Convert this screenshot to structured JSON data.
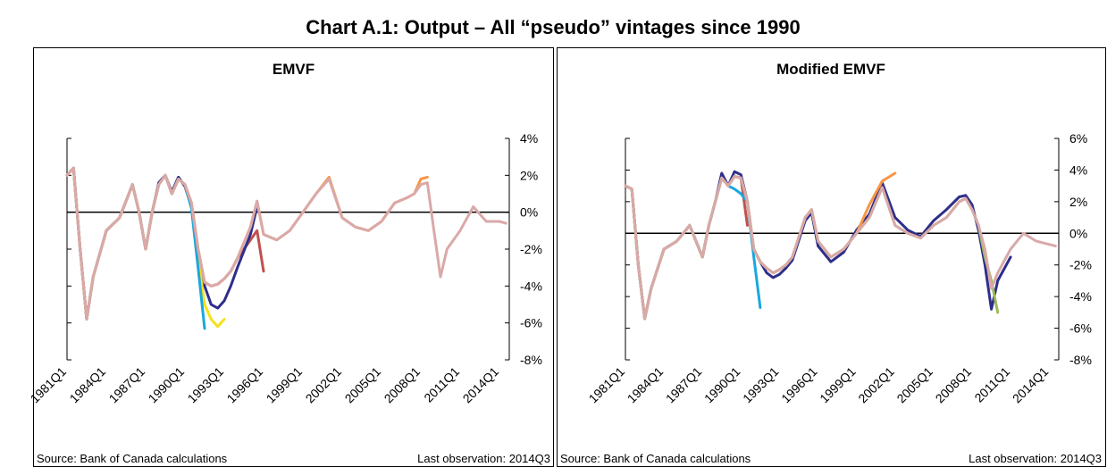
{
  "title": "Chart A.1: Output – All “pseudo” vintages since 1990",
  "chart_data": [
    {
      "type": "line",
      "title": "EMVF",
      "source": "Source: Bank of Canada calculations",
      "last_observation": "Last observation: 2014Q3",
      "zero_line": true,
      "xlim": [
        1981,
        2014.75
      ],
      "ylim": [
        -8,
        4
      ],
      "xticks": [
        {
          "value": 1981,
          "label": "1981Q1"
        },
        {
          "value": 1984,
          "label": "1984Q1"
        },
        {
          "value": 1987,
          "label": "1987Q1"
        },
        {
          "value": 1990,
          "label": "1990Q1"
        },
        {
          "value": 1993,
          "label": "1993Q1"
        },
        {
          "value": 1996,
          "label": "1996Q1"
        },
        {
          "value": 1999,
          "label": "1999Q1"
        },
        {
          "value": 2002,
          "label": "2002Q1"
        },
        {
          "value": 2005,
          "label": "2005Q1"
        },
        {
          "value": 2008,
          "label": "2008Q1"
        },
        {
          "value": 2011,
          "label": "2011Q1"
        },
        {
          "value": 2014,
          "label": "2014Q1"
        }
      ],
      "yticks": [
        {
          "value": -8,
          "label": "-8%"
        },
        {
          "value": -6,
          "label": "-6%"
        },
        {
          "value": -4,
          "label": "-4%"
        },
        {
          "value": -2,
          "label": "-2%"
        },
        {
          "value": 0,
          "label": "0%"
        },
        {
          "value": 2,
          "label": "2%"
        },
        {
          "value": 4,
          "label": "4%"
        }
      ],
      "x": [
        1981,
        1981.5,
        1982,
        1982.5,
        1983,
        1984,
        1985,
        1986,
        1986.5,
        1987,
        1987.5,
        1988,
        1988.5,
        1989,
        1989.5,
        1990,
        1990.5,
        1991,
        1991.5,
        1992,
        1992.5,
        1993,
        1993.5,
        1994,
        1995,
        1995.5,
        1996,
        1997,
        1998,
        1999,
        2000,
        2001,
        2002,
        2003,
        2004,
        2005,
        2006,
        2007,
        2007.5,
        2008,
        2008.5,
        2009,
        2009.5,
        2010,
        2011,
        2012,
        2013,
        2014,
        2014.5
      ],
      "series": [
        {
          "color": "#c0504d",
          "values": [
            2.0,
            2.4,
            -2.0,
            -5.8,
            -3.5,
            -1.0,
            -0.3,
            1.5,
            0.0,
            -2.0,
            0.0,
            1.5,
            2.0,
            1.0,
            1.8,
            1.5,
            0.5,
            -2.0,
            -3.8,
            -4.0,
            -3.9,
            -3.6,
            -3.2,
            -2.5,
            -1.5,
            -1.0,
            -3.2,
            null,
            null,
            null,
            null,
            null,
            null,
            null,
            null,
            null,
            null,
            null,
            null,
            null,
            null,
            null,
            null,
            null,
            null,
            null,
            null,
            null,
            null
          ]
        },
        {
          "color": "#2e2e8a",
          "values": [
            2.0,
            2.4,
            -2.0,
            -5.8,
            -3.5,
            -1.0,
            -0.3,
            1.5,
            0.0,
            -2.0,
            0.0,
            1.6,
            2.0,
            1.1,
            1.9,
            1.4,
            0.3,
            -2.2,
            -4.0,
            -5.0,
            -5.2,
            -4.8,
            -4.0,
            -3.0,
            -1.2,
            0.3,
            null,
            null,
            null,
            null,
            null,
            null,
            null,
            null,
            null,
            null,
            null,
            null,
            null,
            null,
            null,
            null,
            null,
            null,
            null,
            null,
            null,
            null,
            null
          ]
        },
        {
          "color": "#f5e11a",
          "values": [
            2.0,
            2.4,
            -2.0,
            -5.8,
            -3.5,
            -1.0,
            -0.3,
            1.5,
            0.0,
            -2.0,
            0.0,
            1.5,
            2.0,
            1.0,
            1.8,
            1.5,
            0.5,
            -2.5,
            -5.0,
            -5.8,
            -6.2,
            -5.8,
            null,
            null,
            null,
            null,
            null,
            null,
            null,
            null,
            null,
            null,
            null,
            null,
            null,
            null,
            null,
            null,
            null,
            null,
            null,
            null,
            null,
            null,
            null,
            null,
            null,
            null,
            null
          ]
        },
        {
          "color": "#1aa7e0",
          "values": [
            2.0,
            2.4,
            -2.0,
            -5.8,
            -3.5,
            -1.0,
            -0.3,
            1.5,
            0.0,
            -2.0,
            0.0,
            1.5,
            2.0,
            1.0,
            1.8,
            1.5,
            0.2,
            -3.0,
            -6.3,
            null,
            null,
            null,
            null,
            null,
            null,
            null,
            null,
            null,
            null,
            null,
            null,
            null,
            null,
            null,
            null,
            null,
            null,
            null,
            null,
            null,
            null,
            null,
            null,
            null,
            null,
            null,
            null,
            null,
            null
          ]
        },
        {
          "color": "#f79646",
          "values": [
            2.0,
            2.4,
            -2.0,
            -5.8,
            -3.5,
            -1.0,
            -0.3,
            1.5,
            0.0,
            -2.0,
            0.0,
            1.5,
            2.0,
            1.0,
            1.8,
            1.5,
            0.5,
            -2.0,
            -3.8,
            -4.0,
            -3.9,
            -3.6,
            -3.2,
            -2.5,
            -0.8,
            0.6,
            -1.2,
            -1.5,
            -1.0,
            0.0,
            1.0,
            1.9,
            -0.3,
            -0.8,
            -1.0,
            -0.5,
            0.5,
            0.8,
            1.0,
            1.8,
            1.9,
            null,
            null,
            null,
            null,
            null,
            null,
            null,
            null
          ]
        },
        {
          "color": "#d9a9a9",
          "values": [
            2.0,
            2.4,
            -2.0,
            -5.8,
            -3.5,
            -1.0,
            -0.3,
            1.5,
            0.0,
            -2.0,
            0.0,
            1.5,
            2.0,
            1.0,
            1.8,
            1.5,
            0.5,
            -2.0,
            -3.8,
            -4.0,
            -3.9,
            -3.6,
            -3.2,
            -2.5,
            -0.8,
            0.6,
            -1.2,
            -1.5,
            -1.0,
            0.0,
            1.0,
            1.8,
            -0.3,
            -0.8,
            -1.0,
            -0.5,
            0.5,
            0.8,
            1.0,
            1.5,
            1.6,
            -1.0,
            -3.5,
            -2.0,
            -1.0,
            0.3,
            -0.5,
            -0.5,
            -0.6
          ]
        }
      ]
    },
    {
      "type": "line",
      "title": "Modified EMVF",
      "source": "Source: Bank of Canada calculations",
      "last_observation": "Last observation: 2014Q3",
      "zero_line": true,
      "xlim": [
        1981,
        2014.75
      ],
      "ylim": [
        -8,
        6
      ],
      "xticks": [
        {
          "value": 1981,
          "label": "1981Q1"
        },
        {
          "value": 1984,
          "label": "1984Q1"
        },
        {
          "value": 1987,
          "label": "1987Q1"
        },
        {
          "value": 1990,
          "label": "1990Q1"
        },
        {
          "value": 1993,
          "label": "1993Q1"
        },
        {
          "value": 1996,
          "label": "1996Q1"
        },
        {
          "value": 1999,
          "label": "1999Q1"
        },
        {
          "value": 2002,
          "label": "2002Q1"
        },
        {
          "value": 2005,
          "label": "2005Q1"
        },
        {
          "value": 2008,
          "label": "2008Q1"
        },
        {
          "value": 2011,
          "label": "2011Q1"
        },
        {
          "value": 2014,
          "label": "2014Q1"
        }
      ],
      "yticks": [
        {
          "value": -8,
          "label": "-8%"
        },
        {
          "value": -6,
          "label": "-6%"
        },
        {
          "value": -4,
          "label": "-4%"
        },
        {
          "value": -2,
          "label": "-2%"
        },
        {
          "value": 0,
          "label": "0%"
        },
        {
          "value": 2,
          "label": "2%"
        },
        {
          "value": 4,
          "label": "4%"
        },
        {
          "value": 6,
          "label": "6%"
        }
      ],
      "x": [
        1981,
        1981.5,
        1982,
        1982.5,
        1983,
        1984,
        1985,
        1986,
        1986.5,
        1987,
        1987.5,
        1988,
        1988.5,
        1989,
        1989.5,
        1990,
        1990.5,
        1991,
        1991.5,
        1992,
        1992.5,
        1993,
        1993.5,
        1994,
        1995,
        1995.5,
        1996,
        1997,
        1998,
        1999,
        2000,
        2001,
        2002,
        2003,
        2004,
        2005,
        2006,
        2007,
        2007.5,
        2008,
        2008.5,
        2009,
        2009.5,
        2010,
        2011,
        2012,
        2013,
        2014,
        2014.5
      ],
      "series": [
        {
          "color": "#c0504d",
          "values": [
            3.0,
            2.8,
            -2.0,
            -5.4,
            -3.5,
            -1.0,
            -0.5,
            0.5,
            -0.5,
            -1.5,
            0.5,
            2.0,
            3.5,
            3.0,
            3.6,
            3.5,
            0.5,
            null,
            null,
            null,
            null,
            null,
            null,
            null,
            null,
            null,
            null,
            null,
            null,
            null,
            null,
            null,
            null,
            null,
            null,
            null,
            null,
            null,
            null,
            null,
            null,
            null,
            null,
            null,
            null,
            null,
            null,
            null,
            null
          ]
        },
        {
          "color": "#2e2e8a",
          "values": [
            3.0,
            2.8,
            -2.0,
            -5.4,
            -3.5,
            -1.0,
            -0.5,
            0.5,
            -0.5,
            -1.5,
            0.5,
            2.0,
            3.8,
            3.0,
            3.9,
            3.7,
            2.0,
            -1.0,
            -1.8,
            -2.5,
            -2.8,
            -2.6,
            -2.2,
            -1.7,
            0.8,
            1.3,
            -0.8,
            -1.8,
            -1.2,
            0.2,
            1.2,
            3.2,
            1.0,
            0.2,
            -0.2,
            0.8,
            1.5,
            2.3,
            2.4,
            1.8,
            0.2,
            -2.0,
            -4.8,
            -3.0,
            -1.5,
            null,
            null,
            null,
            null
          ]
        },
        {
          "color": "#1aa7e0",
          "values": [
            3.0,
            2.8,
            -2.0,
            -5.4,
            -3.5,
            -1.0,
            -0.5,
            0.5,
            -0.5,
            -1.5,
            0.5,
            2.0,
            3.5,
            3.0,
            2.8,
            2.5,
            2.0,
            -1.5,
            -4.7,
            null,
            null,
            null,
            null,
            null,
            null,
            null,
            null,
            null,
            null,
            null,
            null,
            null,
            null,
            null,
            null,
            null,
            null,
            null,
            null,
            null,
            null,
            null,
            null,
            null,
            null,
            null,
            null,
            null,
            null
          ]
        },
        {
          "color": "#f79646",
          "values": [
            3.0,
            2.8,
            -2.0,
            -5.4,
            -3.5,
            -1.0,
            -0.5,
            0.5,
            -0.5,
            -1.5,
            0.5,
            2.0,
            3.5,
            3.0,
            3.6,
            3.5,
            2.0,
            -1.0,
            -1.8,
            -2.2,
            -2.5,
            -2.3,
            -2.0,
            -1.5,
            1.0,
            1.5,
            -0.5,
            -1.5,
            -1.0,
            0.0,
            1.8,
            3.3,
            3.8,
            null,
            null,
            null,
            null,
            null,
            null,
            null,
            null,
            null,
            null,
            null,
            null,
            null,
            null,
            null,
            null
          ]
        },
        {
          "color": "#9bbb59",
          "values": [
            3.0,
            2.8,
            -2.0,
            -5.4,
            -3.5,
            -1.0,
            -0.5,
            0.5,
            -0.5,
            -1.5,
            0.5,
            2.0,
            3.5,
            3.0,
            3.6,
            3.5,
            2.0,
            -1.0,
            -1.8,
            -2.2,
            -2.5,
            -2.3,
            -2.0,
            -1.5,
            1.0,
            1.5,
            -0.5,
            -1.5,
            -1.0,
            0.0,
            1.0,
            2.9,
            0.5,
            0.0,
            -0.3,
            0.5,
            1.0,
            2.0,
            2.2,
            1.5,
            0.5,
            -1.5,
            -3.0,
            -5.0,
            null,
            null,
            null,
            null,
            null
          ]
        },
        {
          "color": "#d9a9a9",
          "values": [
            3.0,
            2.8,
            -2.0,
            -5.4,
            -3.5,
            -1.0,
            -0.5,
            0.5,
            -0.5,
            -1.5,
            0.5,
            2.0,
            3.5,
            3.0,
            3.6,
            3.5,
            2.0,
            -1.0,
            -1.8,
            -2.2,
            -2.5,
            -2.3,
            -2.0,
            -1.5,
            1.0,
            1.5,
            -0.5,
            -1.5,
            -1.0,
            0.0,
            1.0,
            2.9,
            0.5,
            0.0,
            -0.3,
            0.5,
            1.0,
            2.0,
            2.2,
            1.5,
            0.5,
            -1.0,
            -3.5,
            -2.5,
            -1.0,
            0.0,
            -0.5,
            -0.7,
            -0.8
          ]
        }
      ]
    }
  ]
}
